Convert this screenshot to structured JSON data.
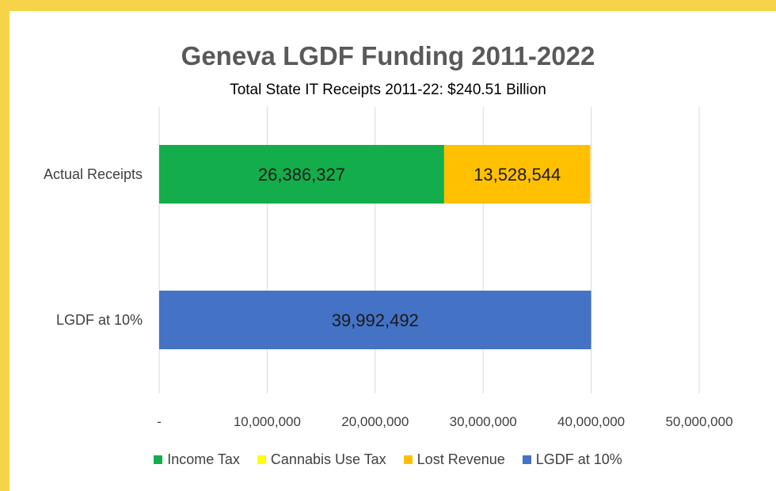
{
  "chart_data": {
    "type": "bar",
    "orientation": "horizontal",
    "stacked": true,
    "title": "Geneva LGDF Funding 2011-2022",
    "subtitle": "Total State IT Receipts 2011-22: $240.51 Billion",
    "categories": [
      "Actual Receipts",
      "LGDF at 10%"
    ],
    "series": [
      {
        "name": "Income Tax",
        "color": "#14ad4b",
        "values": [
          26386327,
          null
        ],
        "labels": [
          "26,386,327",
          ""
        ]
      },
      {
        "name": "Cannabis Use Tax",
        "color": "#ffff00",
        "values": [
          null,
          null
        ],
        "labels": [
          "",
          ""
        ]
      },
      {
        "name": "Lost Revenue",
        "color": "#ffc000",
        "values": [
          13528544,
          null
        ],
        "labels": [
          "13,528,544",
          ""
        ]
      },
      {
        "name": "LGDF at 10%",
        "color": "#4472c4",
        "values": [
          null,
          39992492
        ],
        "labels": [
          "",
          "39,992,492"
        ]
      }
    ],
    "xlim": [
      0,
      50000000
    ],
    "xticks": [
      0,
      10000000,
      20000000,
      30000000,
      40000000,
      50000000
    ],
    "xtick_labels": [
      "-",
      "10,000,000",
      "20,000,000",
      "30,000,000",
      "40,000,000",
      "50,000,000"
    ],
    "grid": true,
    "legend_position": "bottom"
  }
}
